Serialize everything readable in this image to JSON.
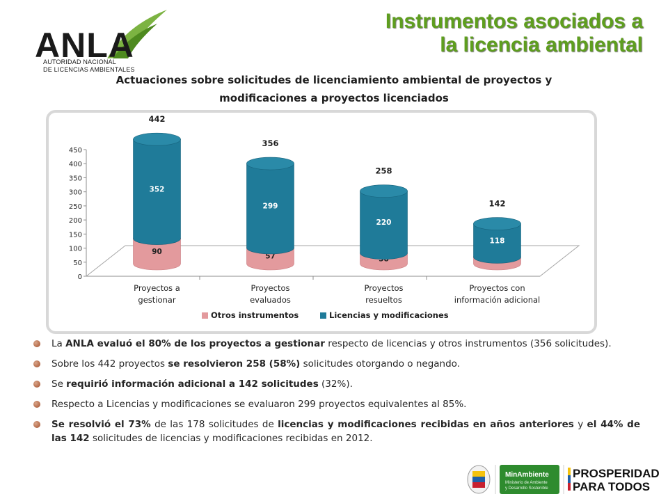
{
  "header": {
    "logo_text": "ANLA",
    "logo_subtitle_1": "AUTORIDAD NACIONAL",
    "logo_subtitle_2": "DE LICENCIAS AMBIENTALES",
    "title_line1": "Instrumentos asociados a",
    "title_line2": "la licencia ambiental"
  },
  "chart_title_line1": "Actuaciones sobre solicitudes de licenciamiento ambiental de proyectos y",
  "chart_title_line2": "modificaciones a proyectos licenciados",
  "chart_data": {
    "type": "bar",
    "stacked": true,
    "three_d": true,
    "categories": [
      [
        "Proyectos a",
        "gestionar"
      ],
      [
        "Proyectos",
        "evaluados"
      ],
      [
        "Proyectos",
        "resueltos"
      ],
      [
        "Proyectos con",
        "información adicional"
      ]
    ],
    "series": [
      {
        "name": "Otros instrumentos",
        "values": [
          90,
          57,
          38,
          24
        ],
        "color": "#e39a9d"
      },
      {
        "name": "Licencias y modificaciones",
        "values": [
          352,
          299,
          220,
          118
        ],
        "color": "#1f7b99"
      }
    ],
    "totals": [
      442,
      356,
      258,
      142
    ],
    "ylim": [
      0,
      450
    ],
    "yticks": [
      0,
      50,
      100,
      150,
      200,
      250,
      300,
      350,
      400,
      450
    ],
    "legend_position": "bottom",
    "grid": false
  },
  "bullets": [
    [
      {
        "t": "La ",
        "b": false
      },
      {
        "t": "ANLA evaluó el 80% de los proyectos a gestionar",
        "b": true
      },
      {
        "t": " respecto de licencias y otros instrumentos (356 solicitudes).",
        "b": false
      }
    ],
    [
      {
        "t": "Sobre los 442 proyectos ",
        "b": false
      },
      {
        "t": "se resolvieron 258 (58%)",
        "b": true
      },
      {
        "t": " solicitudes otorgando o negando.",
        "b": false
      }
    ],
    [
      {
        "t": "Se ",
        "b": false
      },
      {
        "t": "requirió información adicional a 142 solicitudes",
        "b": true
      },
      {
        "t": " (32%).",
        "b": false
      }
    ],
    [
      {
        "t": "Respecto a Licencias y modificaciones se evaluaron 299 proyectos equivalentes al 85%.",
        "b": false
      }
    ],
    [
      {
        "t": "Se resolvió el 73%",
        "b": true
      },
      {
        "t": " de las 178 solicitudes de ",
        "b": false
      },
      {
        "t": "licencias y modificaciones recibidas en años anteriores",
        "b": true
      },
      {
        "t": " y ",
        "b": false
      },
      {
        "t": "el 44% de las 142",
        "b": true
      },
      {
        "t": " solicitudes de licencias y modificaciones recibidas en 2012.",
        "b": false
      }
    ]
  ],
  "footer": {
    "minambiente_label": "MinAmbiente",
    "minambiente_sub1": "Ministerio de Ambiente",
    "minambiente_sub2": "y Desarrollo Sostenible",
    "prosperidad_line1": "PROSPERIDAD",
    "prosperidad_line2": "PARA TODOS"
  },
  "colors": {
    "title_green": "#5e9e1e",
    "otros": "#e39a9d",
    "licencias": "#1f7b99"
  }
}
